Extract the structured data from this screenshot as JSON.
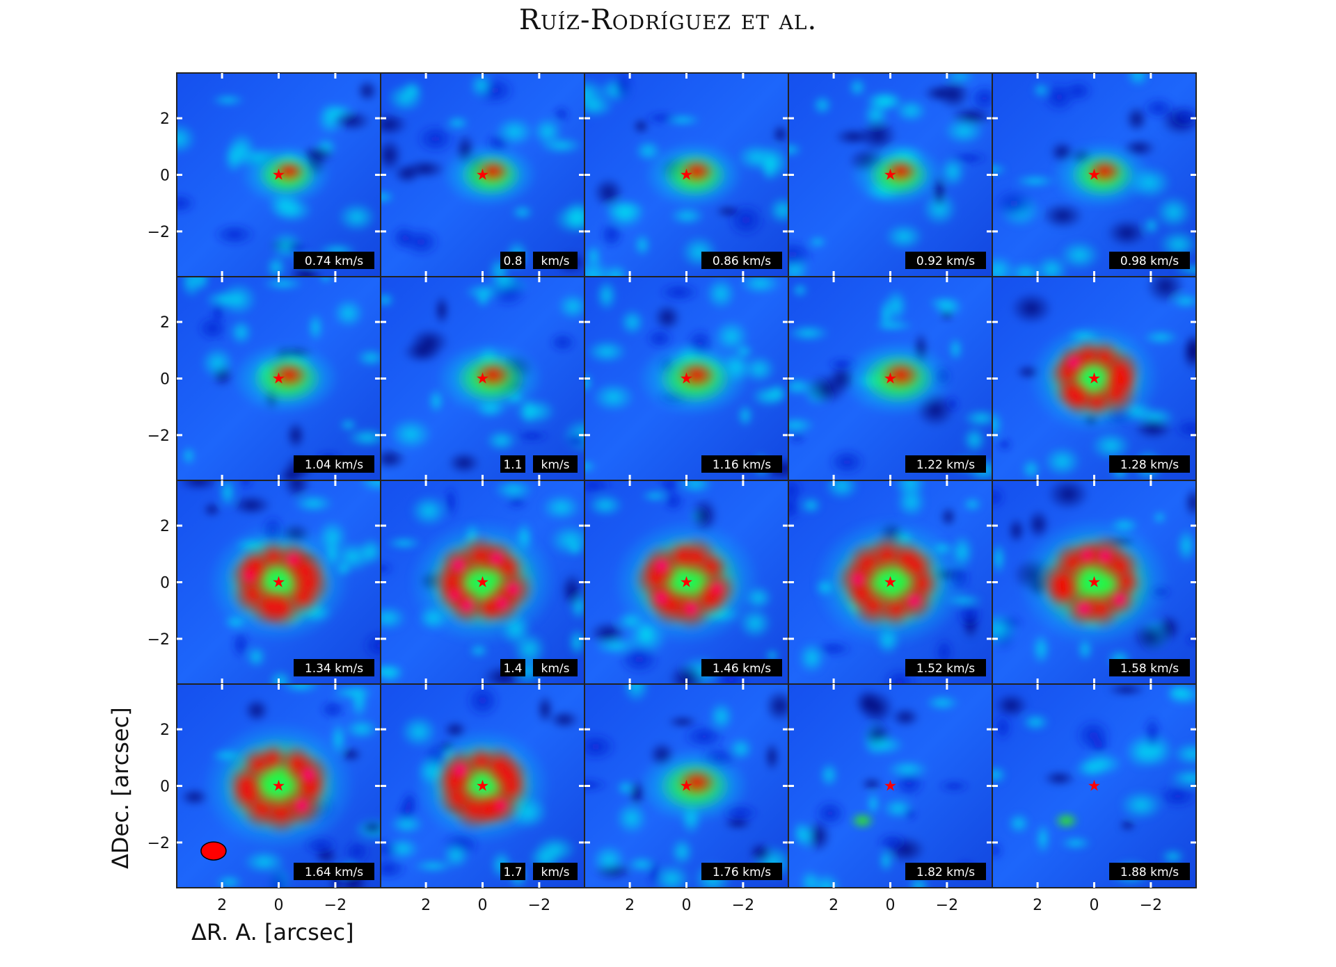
{
  "running_head": "Ruíz-Rodríguez et al.",
  "figure": {
    "colormap": [
      "#00006e",
      "#0a1fd0",
      "#1e78ff",
      "#00dcf0",
      "#19f07a",
      "#35ff00",
      "#f0ff00",
      "#ff8800",
      "#ff0000",
      "#ff0090",
      "#ffffff"
    ],
    "star_color": "#ff0000",
    "beam_color": "#ff0000",
    "x_ticks": [
      2,
      0,
      -2
    ],
    "y_ticks": [
      2,
      0,
      -2
    ],
    "xlabel": "ΔR. A. [arcsec]",
    "ylabel": "ΔDec. [arcsec]",
    "panels": [
      {
        "velocity": "0.74 km/s"
      },
      {
        "velocity": "0.8",
        "unit": "km/s"
      },
      {
        "velocity": "0.86 km/s"
      },
      {
        "velocity": "0.92 km/s"
      },
      {
        "velocity": "0.98 km/s"
      },
      {
        "velocity": "1.04 km/s"
      },
      {
        "velocity": "1.1",
        "unit": "km/s"
      },
      {
        "velocity": "1.16 km/s"
      },
      {
        "velocity": "1.22 km/s"
      },
      {
        "velocity": "1.28 km/s"
      },
      {
        "velocity": "1.34 km/s"
      },
      {
        "velocity": "1.4",
        "unit": "km/s"
      },
      {
        "velocity": "1.46 km/s"
      },
      {
        "velocity": "1.52 km/s"
      },
      {
        "velocity": "1.58 km/s"
      },
      {
        "velocity": "1.64 km/s"
      },
      {
        "velocity": "1.7",
        "unit": "km/s"
      },
      {
        "velocity": "1.76 km/s"
      },
      {
        "velocity": "1.82 km/s"
      },
      {
        "velocity": "1.88 km/s"
      }
    ]
  }
}
